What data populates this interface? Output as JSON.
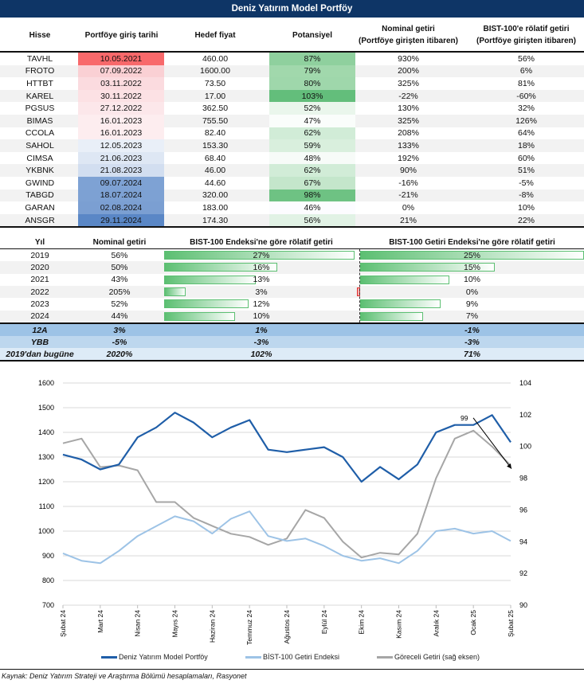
{
  "title": "Deniz Yatırım Model Portföy",
  "portfolio": {
    "headers": [
      "Hisse",
      "Portföye giriş tarihi",
      "Hedef fiyat",
      "Potansiyel",
      "Nominal getiri",
      "(Portföye girişten itibaren)",
      "BIST-100'e rölatif getiri",
      "(Portföye girişten itibaren)"
    ],
    "rows": [
      {
        "stock": "TAVHL",
        "date": "10.05.2021",
        "target": "460.00",
        "potential": "87%",
        "nominal": "930%",
        "relative": "56%",
        "date_color": "#f8696b",
        "pot_color": "#8fd09e"
      },
      {
        "stock": "FROTO",
        "date": "07.09.2022",
        "target": "1600.00",
        "potential": "79%",
        "nominal": "200%",
        "relative": "6%",
        "date_color": "#fad0d4",
        "pot_color": "#a1d8ac"
      },
      {
        "stock": "HTTBT",
        "date": "03.11.2022",
        "target": "73.50",
        "potential": "80%",
        "nominal": "325%",
        "relative": "81%",
        "date_color": "#fbdbdf",
        "pot_color": "#9fd7ab"
      },
      {
        "stock": "KAREL",
        "date": "30.11.2022",
        "target": "17.00",
        "potential": "103%",
        "nominal": "-22%",
        "relative": "-60%",
        "date_color": "#fce1e4",
        "pot_color": "#63be7b"
      },
      {
        "stock": "PGSUS",
        "date": "27.12.2022",
        "target": "362.50",
        "potential": "52%",
        "nominal": "130%",
        "relative": "32%",
        "date_color": "#fce7ea",
        "pot_color": "#eaf6ec"
      },
      {
        "stock": "BIMAS",
        "date": "16.01.2023",
        "target": "755.50",
        "potential": "47%",
        "nominal": "325%",
        "relative": "126%",
        "date_color": "#fdedef",
        "pot_color": "#fafdfb"
      },
      {
        "stock": "CCOLA",
        "date": "16.01.2023",
        "target": "82.40",
        "potential": "62%",
        "nominal": "208%",
        "relative": "64%",
        "date_color": "#fdedef",
        "pot_color": "#d1ecd7"
      },
      {
        "stock": "SAHOL",
        "date": "12.05.2023",
        "target": "153.30",
        "potential": "59%",
        "nominal": "133%",
        "relative": "18%",
        "date_color": "#e9eff8",
        "pot_color": "#d9efdd"
      },
      {
        "stock": "CIMSA",
        "date": "21.06.2023",
        "target": "68.40",
        "potential": "48%",
        "nominal": "192%",
        "relative": "60%",
        "date_color": "#dee7f4",
        "pot_color": "#f7fbf8"
      },
      {
        "stock": "YKBNK",
        "date": "21.08.2023",
        "target": "46.00",
        "potential": "62%",
        "nominal": "90%",
        "relative": "51%",
        "date_color": "#d2def0",
        "pot_color": "#d1ecd7"
      },
      {
        "stock": "GWIND",
        "date": "09.07.2024",
        "target": "44.60",
        "potential": "67%",
        "nominal": "-16%",
        "relative": "-5%",
        "date_color": "#7ea2d4",
        "pot_color": "#c4e6cb"
      },
      {
        "stock": "TABGD",
        "date": "18.07.2024",
        "target": "320.00",
        "potential": "98%",
        "nominal": "-21%",
        "relative": "-8%",
        "date_color": "#7da1d3",
        "pot_color": "#6ec283"
      },
      {
        "stock": "GARAN",
        "date": "02.08.2024",
        "target": "183.00",
        "potential": "46%",
        "nominal": "0%",
        "relative": "10%",
        "date_color": "#7b9fd2",
        "pot_color": "#fcfcff"
      },
      {
        "stock": "ANSGR",
        "date": "29.11.2024",
        "target": "174.30",
        "potential": "56%",
        "nominal": "21%",
        "relative": "22%",
        "date_color": "#5a87c6",
        "pot_color": "#e1f2e5"
      }
    ]
  },
  "yearly": {
    "headers": [
      "Yıl",
      "Nominal getiri",
      "BIST-100 Endeksi'ne göre rölatif getiri",
      "BIST-100 Getiri Endeksi'ne göre rölatif getiri"
    ],
    "rows": [
      {
        "year": "2019",
        "nominal": "56%",
        "rel_bist": "27%",
        "rel_bist_value": 27,
        "rel_getiri": "25%",
        "rel_getiri_value": 25
      },
      {
        "year": "2020",
        "nominal": "50%",
        "rel_bist": "16%",
        "rel_bist_value": 16,
        "rel_getiri": "15%",
        "rel_getiri_value": 15
      },
      {
        "year": "2021",
        "nominal": "43%",
        "rel_bist": "13%",
        "rel_bist_value": 13,
        "rel_getiri": "10%",
        "rel_getiri_value": 10
      },
      {
        "year": "2022",
        "nominal": "205%",
        "rel_bist": "3%",
        "rel_bist_value": 3,
        "rel_getiri": "0%",
        "rel_getiri_value": 0
      },
      {
        "year": "2023",
        "nominal": "52%",
        "rel_bist": "12%",
        "rel_bist_value": 12,
        "rel_getiri": "9%",
        "rel_getiri_value": 9
      },
      {
        "year": "2024",
        "nominal": "44%",
        "rel_bist": "10%",
        "rel_bist_value": 10,
        "rel_getiri": "7%",
        "rel_getiri_value": 7
      }
    ],
    "summary": [
      {
        "label": "12A",
        "nominal": "3%",
        "rel_bist": "1%",
        "rel_getiri": "-1%",
        "color": "#9dc3e6"
      },
      {
        "label": "YBB",
        "nominal": "-5%",
        "rel_bist": "-3%",
        "rel_getiri": "-3%",
        "color": "#bdd7ee"
      },
      {
        "label": "2019'dan bugüne",
        "nominal": "2020%",
        "rel_bist": "102%",
        "rel_getiri": "71%",
        "color": "#ddebf7"
      }
    ]
  },
  "chart_data": {
    "type": "line",
    "x": [
      "Şubat 24",
      "",
      "Mart 24",
      "",
      "Nisan 24",
      "",
      "Mayıs 24",
      "",
      "Haziran 24",
      "",
      "Temmuz 24",
      "",
      "Ağustos 24",
      "",
      "Eylül 24",
      "",
      "Ekim 24",
      "",
      "Kasım 24",
      "",
      "Aralık 24",
      "",
      "Ocak 25",
      "",
      "Şubat 25"
    ],
    "x_tick_labels": [
      "Şubat 24",
      "Mart 24",
      "Nisan 24",
      "Mayıs 24",
      "Haziran 24",
      "Temmuz 24",
      "Ağustos 24",
      "Eylül 24",
      "Ekim 24",
      "Kasım 24",
      "Aralık 24",
      "Ocak 25",
      "Şubat 25"
    ],
    "y_left": {
      "range": [
        700,
        1600
      ],
      "ticks": [
        "700",
        "800",
        "900",
        "1000",
        "1100",
        "1200",
        "1300",
        "1400",
        "1500",
        "1600"
      ]
    },
    "y_right": {
      "range": [
        90,
        104
      ],
      "ticks": [
        "90",
        "92",
        "94",
        "96",
        "98",
        "100",
        "102",
        "104"
      ]
    },
    "grid": true,
    "legend": "bottom",
    "annotation": "99",
    "series": [
      {
        "name": "Deniz Yatırım Model Portföy",
        "axis": "left",
        "color": "#1f5ea8",
        "values": [
          1310,
          1290,
          1250,
          1270,
          1380,
          1420,
          1480,
          1440,
          1380,
          1420,
          1450,
          1330,
          1320,
          1330,
          1340,
          1300,
          1200,
          1260,
          1210,
          1270,
          1400,
          1430,
          1430,
          1470,
          1360
        ]
      },
      {
        "name": "BİST-100 Getiri Endeksi",
        "axis": "left",
        "color": "#9dc3e6",
        "values": [
          910,
          880,
          870,
          920,
          980,
          1020,
          1060,
          1040,
          990,
          1050,
          1080,
          980,
          960,
          970,
          940,
          900,
          880,
          890,
          870,
          920,
          1000,
          1010,
          990,
          1000,
          960
        ]
      },
      {
        "name": "Göreceli Getiri (sağ eksen)",
        "axis": "right",
        "color": "#a6a6a6",
        "values": [
          100.2,
          100.5,
          98.7,
          98.8,
          98.5,
          96.5,
          96.5,
          95.5,
          95.0,
          94.5,
          94.3,
          93.8,
          94.2,
          96.0,
          95.5,
          94.0,
          93.0,
          93.3,
          93.2,
          94.5,
          98.0,
          100.5,
          101.0,
          100.0,
          98.8
        ]
      }
    ]
  },
  "source": "Kaynak: Deniz Yatırım Strateji ve Araştırma Bölümü hesaplamaları, Rasyonet"
}
